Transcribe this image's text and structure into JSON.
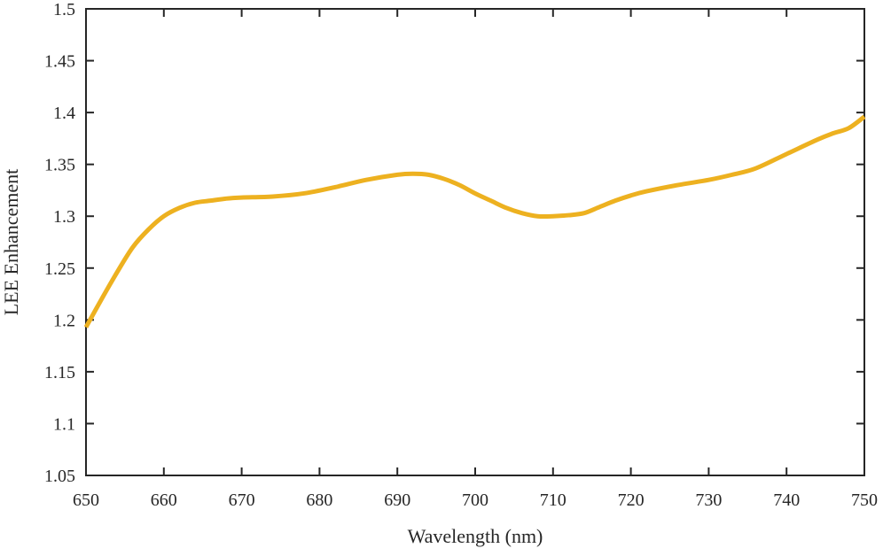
{
  "chart_data": {
    "type": "line",
    "title": "",
    "xlabel": "Wavelength (nm)",
    "ylabel": "LEE Enhancement",
    "xlim": [
      650,
      750
    ],
    "ylim": [
      1.05,
      1.5
    ],
    "xticks": [
      650,
      660,
      670,
      680,
      690,
      700,
      710,
      720,
      730,
      740,
      750
    ],
    "yticks": [
      1.05,
      1.1,
      1.15,
      1.2,
      1.25,
      1.3,
      1.35,
      1.4,
      1.45,
      1.5
    ],
    "xtick_labels": [
      "650",
      "660",
      "670",
      "680",
      "690",
      "700",
      "710",
      "720",
      "730",
      "740",
      "750"
    ],
    "ytick_labels": [
      "1.05",
      "1.1",
      "1.15",
      "1.2",
      "1.25",
      "1.3",
      "1.35",
      "1.4",
      "1.45",
      "1.5"
    ],
    "grid": false,
    "line_color": "#EDB120",
    "axis_color": "#262626",
    "series": [
      {
        "x": [
          650,
          652,
          654,
          656,
          658,
          660,
          662,
          664,
          666,
          668,
          670,
          674,
          678,
          682,
          686,
          690,
          692,
          694,
          696,
          698,
          700,
          702,
          704,
          706,
          708,
          710,
          712,
          714,
          716,
          718,
          720,
          722,
          726,
          730,
          733,
          736,
          740,
          744,
          746,
          748,
          750
        ],
        "y": [
          1.193,
          1.22,
          1.246,
          1.27,
          1.287,
          1.3,
          1.308,
          1.313,
          1.315,
          1.317,
          1.318,
          1.319,
          1.322,
          1.328,
          1.335,
          1.34,
          1.341,
          1.34,
          1.336,
          1.33,
          1.322,
          1.315,
          1.308,
          1.303,
          1.3,
          1.3,
          1.301,
          1.303,
          1.309,
          1.315,
          1.32,
          1.324,
          1.33,
          1.335,
          1.34,
          1.346,
          1.36,
          1.374,
          1.38,
          1.385,
          1.396
        ]
      }
    ]
  }
}
